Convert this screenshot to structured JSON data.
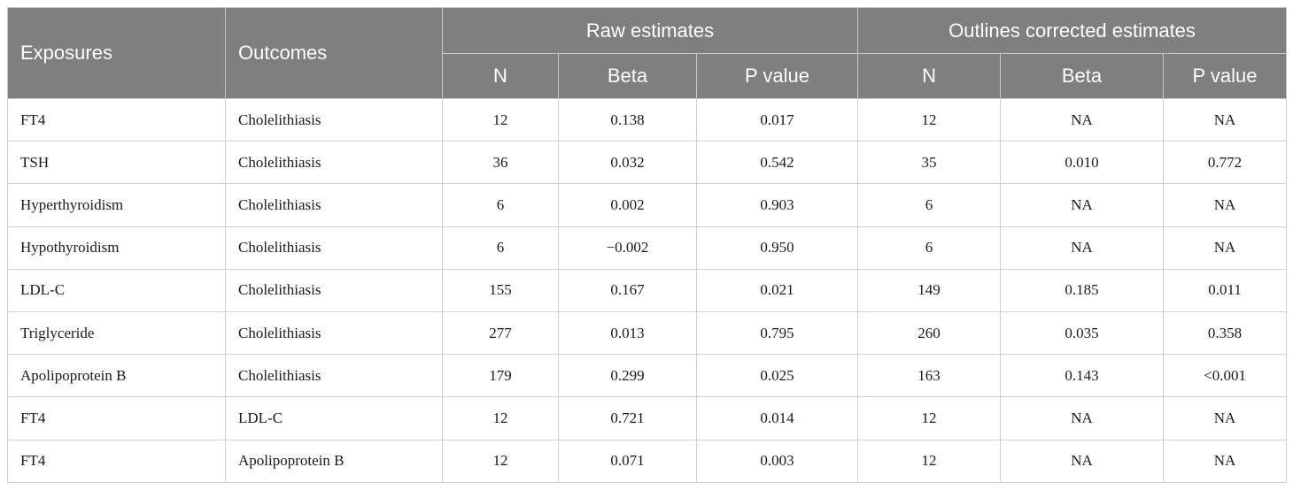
{
  "header": {
    "exposures": "Exposures",
    "outcomes": "Outcomes",
    "raw_group": "Raw estimates",
    "corrected_group": "Outlines corrected estimates",
    "n": "N",
    "beta": "Beta",
    "p_value": "P value"
  },
  "rows": [
    {
      "exposure": "FT4",
      "outcome": "Cholelithiasis",
      "raw_n": "12",
      "raw_beta": "0.138",
      "raw_p": "0.017",
      "cor_n": "12",
      "cor_beta": "NA",
      "cor_p": "NA"
    },
    {
      "exposure": "TSH",
      "outcome": "Cholelithiasis",
      "raw_n": "36",
      "raw_beta": "0.032",
      "raw_p": "0.542",
      "cor_n": "35",
      "cor_beta": "0.010",
      "cor_p": "0.772"
    },
    {
      "exposure": "Hyperthyroidism",
      "outcome": "Cholelithiasis",
      "raw_n": "6",
      "raw_beta": "0.002",
      "raw_p": "0.903",
      "cor_n": "6",
      "cor_beta": "NA",
      "cor_p": "NA"
    },
    {
      "exposure": "Hypothyroidism",
      "outcome": "Cholelithiasis",
      "raw_n": "6",
      "raw_beta": "−0.002",
      "raw_p": "0.950",
      "cor_n": "6",
      "cor_beta": "NA",
      "cor_p": "NA"
    },
    {
      "exposure": "LDL-C",
      "outcome": "Cholelithiasis",
      "raw_n": "155",
      "raw_beta": "0.167",
      "raw_p": "0.021",
      "cor_n": "149",
      "cor_beta": "0.185",
      "cor_p": "0.011"
    },
    {
      "exposure": "Triglyceride",
      "outcome": "Cholelithiasis",
      "raw_n": "277",
      "raw_beta": "0.013",
      "raw_p": "0.795",
      "cor_n": "260",
      "cor_beta": "0.035",
      "cor_p": "0.358"
    },
    {
      "exposure": "Apolipoprotein B",
      "outcome": "Cholelithiasis",
      "raw_n": "179",
      "raw_beta": "0.299",
      "raw_p": "0.025",
      "cor_n": "163",
      "cor_beta": "0.143",
      "cor_p": "<0.001"
    },
    {
      "exposure": "FT4",
      "outcome": "LDL-C",
      "raw_n": "12",
      "raw_beta": "0.721",
      "raw_p": "0.014",
      "cor_n": "12",
      "cor_beta": "NA",
      "cor_p": "NA"
    },
    {
      "exposure": "FT4",
      "outcome": "Apolipoprotein B",
      "raw_n": "12",
      "raw_beta": "0.071",
      "raw_p": "0.003",
      "cor_n": "12",
      "cor_beta": "NA",
      "cor_p": "NA"
    }
  ]
}
